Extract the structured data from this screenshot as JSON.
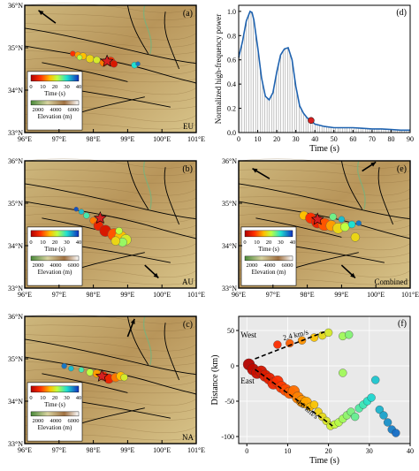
{
  "colors": {
    "terrain_low": "#d8c48a",
    "terrain_high": "#9a6e3c",
    "line_blue": "#1f63b0",
    "hf_fill": "#cfcfcf",
    "scatter_bg": "#e9e9e9",
    "quake_red": "#d62020"
  },
  "map_axes": {
    "lon_ticks": [
      "96°E",
      "97°E",
      "98°E",
      "99°E",
      "100°E",
      "101°E"
    ],
    "lat_ticks": [
      "36°N",
      "35°N",
      "34°N",
      "33°N"
    ]
  },
  "maps": [
    {
      "id": "a",
      "tag": "(a)",
      "corner_label": "EU"
    },
    {
      "id": "b",
      "tag": "(b)",
      "corner_label": "AU"
    },
    {
      "id": "c",
      "tag": "(c)",
      "corner_label": "NA"
    },
    {
      "id": "e",
      "tag": "(e)",
      "corner_label": "Combined"
    }
  ],
  "legend": {
    "time_label": "Time (s)",
    "time_ticks": [
      "0",
      "10",
      "20",
      "30",
      "40"
    ],
    "elev_label": "Elevation (m)",
    "elev_ticks": [
      "2000",
      "4000",
      "6000"
    ]
  },
  "chart_data": [
    {
      "type": "area",
      "panel": "(d)",
      "xlabel": "Time (s)",
      "ylabel": "Normalized high-frequency power",
      "xlim": [
        0,
        90
      ],
      "ylim": [
        0,
        1.05
      ],
      "xticks": [
        "0",
        "10",
        "20",
        "30",
        "40",
        "50",
        "60",
        "70",
        "80",
        "90"
      ],
      "yticks": [
        "0.0",
        "0.2",
        "0.4",
        "0.6",
        "0.8",
        "1.0"
      ],
      "x": [
        0,
        2,
        4,
        6,
        7,
        8,
        10,
        12,
        14,
        16,
        18,
        20,
        22,
        24,
        26,
        28,
        30,
        32,
        34,
        36,
        38,
        40,
        45,
        50,
        55,
        60,
        65,
        70,
        75,
        80,
        85,
        90
      ],
      "y": [
        0.62,
        0.75,
        0.92,
        1.0,
        0.99,
        0.93,
        0.7,
        0.45,
        0.3,
        0.27,
        0.33,
        0.5,
        0.64,
        0.69,
        0.7,
        0.6,
        0.38,
        0.22,
        0.16,
        0.12,
        0.1,
        0.07,
        0.05,
        0.04,
        0.04,
        0.04,
        0.035,
        0.03,
        0.03,
        0.025,
        0.02,
        0.02
      ],
      "end_marker": {
        "x": 38,
        "y": 0.1
      }
    },
    {
      "type": "scatter",
      "panel": "(f)",
      "xlabel": "Time (s)",
      "ylabel": "Distance (km)",
      "xlim": [
        -2,
        40
      ],
      "ylim": [
        -110,
        70
      ],
      "xticks": [
        "0",
        "10",
        "20",
        "30",
        "40"
      ],
      "yticks": [
        "50",
        "0",
        "-50",
        "-100"
      ],
      "annotations": {
        "west": "West",
        "east": "East",
        "speed_west": "2.4 km/s",
        "speed_east": "4.0 km/s"
      },
      "points": [
        {
          "t": 0.5,
          "d": 2
        },
        {
          "t": 1.5,
          "d": -5
        },
        {
          "t": 2.5,
          "d": -10
        },
        {
          "t": 3.5,
          "d": -8
        },
        {
          "t": 4.5,
          "d": -14
        },
        {
          "t": 5.5,
          "d": -18
        },
        {
          "t": 6.5,
          "d": -25
        },
        {
          "t": 7.5,
          "d": -22
        },
        {
          "t": 8.5,
          "d": -30
        },
        {
          "t": 9.5,
          "d": -34
        },
        {
          "t": 10.5,
          "d": -38
        },
        {
          "t": 11.5,
          "d": -36
        },
        {
          "t": 12.5,
          "d": -45
        },
        {
          "t": 13.5,
          "d": -50
        },
        {
          "t": 14.5,
          "d": -52
        },
        {
          "t": 15.5,
          "d": -58
        },
        {
          "t": 16.5,
          "d": -55
        },
        {
          "t": 17.5,
          "d": -65
        },
        {
          "t": 18.5,
          "d": -72
        },
        {
          "t": 19.5,
          "d": -78
        },
        {
          "t": 20.5,
          "d": -85
        },
        {
          "t": 21.5,
          "d": -83
        },
        {
          "t": 22.5,
          "d": -80
        },
        {
          "t": 23.5,
          "d": -75
        },
        {
          "t": 24.5,
          "d": -70
        },
        {
          "t": 25.5,
          "d": -65
        },
        {
          "t": 26.5,
          "d": -72
        },
        {
          "t": 27.5,
          "d": -60
        },
        {
          "t": 28.5,
          "d": -55
        },
        {
          "t": 29.5,
          "d": -50
        },
        {
          "t": 30.5,
          "d": -45
        },
        {
          "t": 31.5,
          "d": -20
        },
        {
          "t": 32.5,
          "d": -62
        },
        {
          "t": 33.5,
          "d": -70
        },
        {
          "t": 34.5,
          "d": -80
        },
        {
          "t": 35.5,
          "d": -90
        },
        {
          "t": 36.5,
          "d": -95
        },
        {
          "t": 7.5,
          "d": 30
        },
        {
          "t": 10.5,
          "d": 32
        },
        {
          "t": 13.5,
          "d": 36
        },
        {
          "t": 16.5,
          "d": 40
        },
        {
          "t": 18.5,
          "d": 43
        },
        {
          "t": 20,
          "d": 47
        },
        {
          "t": 23.5,
          "d": 42
        },
        {
          "t": 25,
          "d": 44
        },
        {
          "t": 23.5,
          "d": -10
        }
      ]
    }
  ]
}
